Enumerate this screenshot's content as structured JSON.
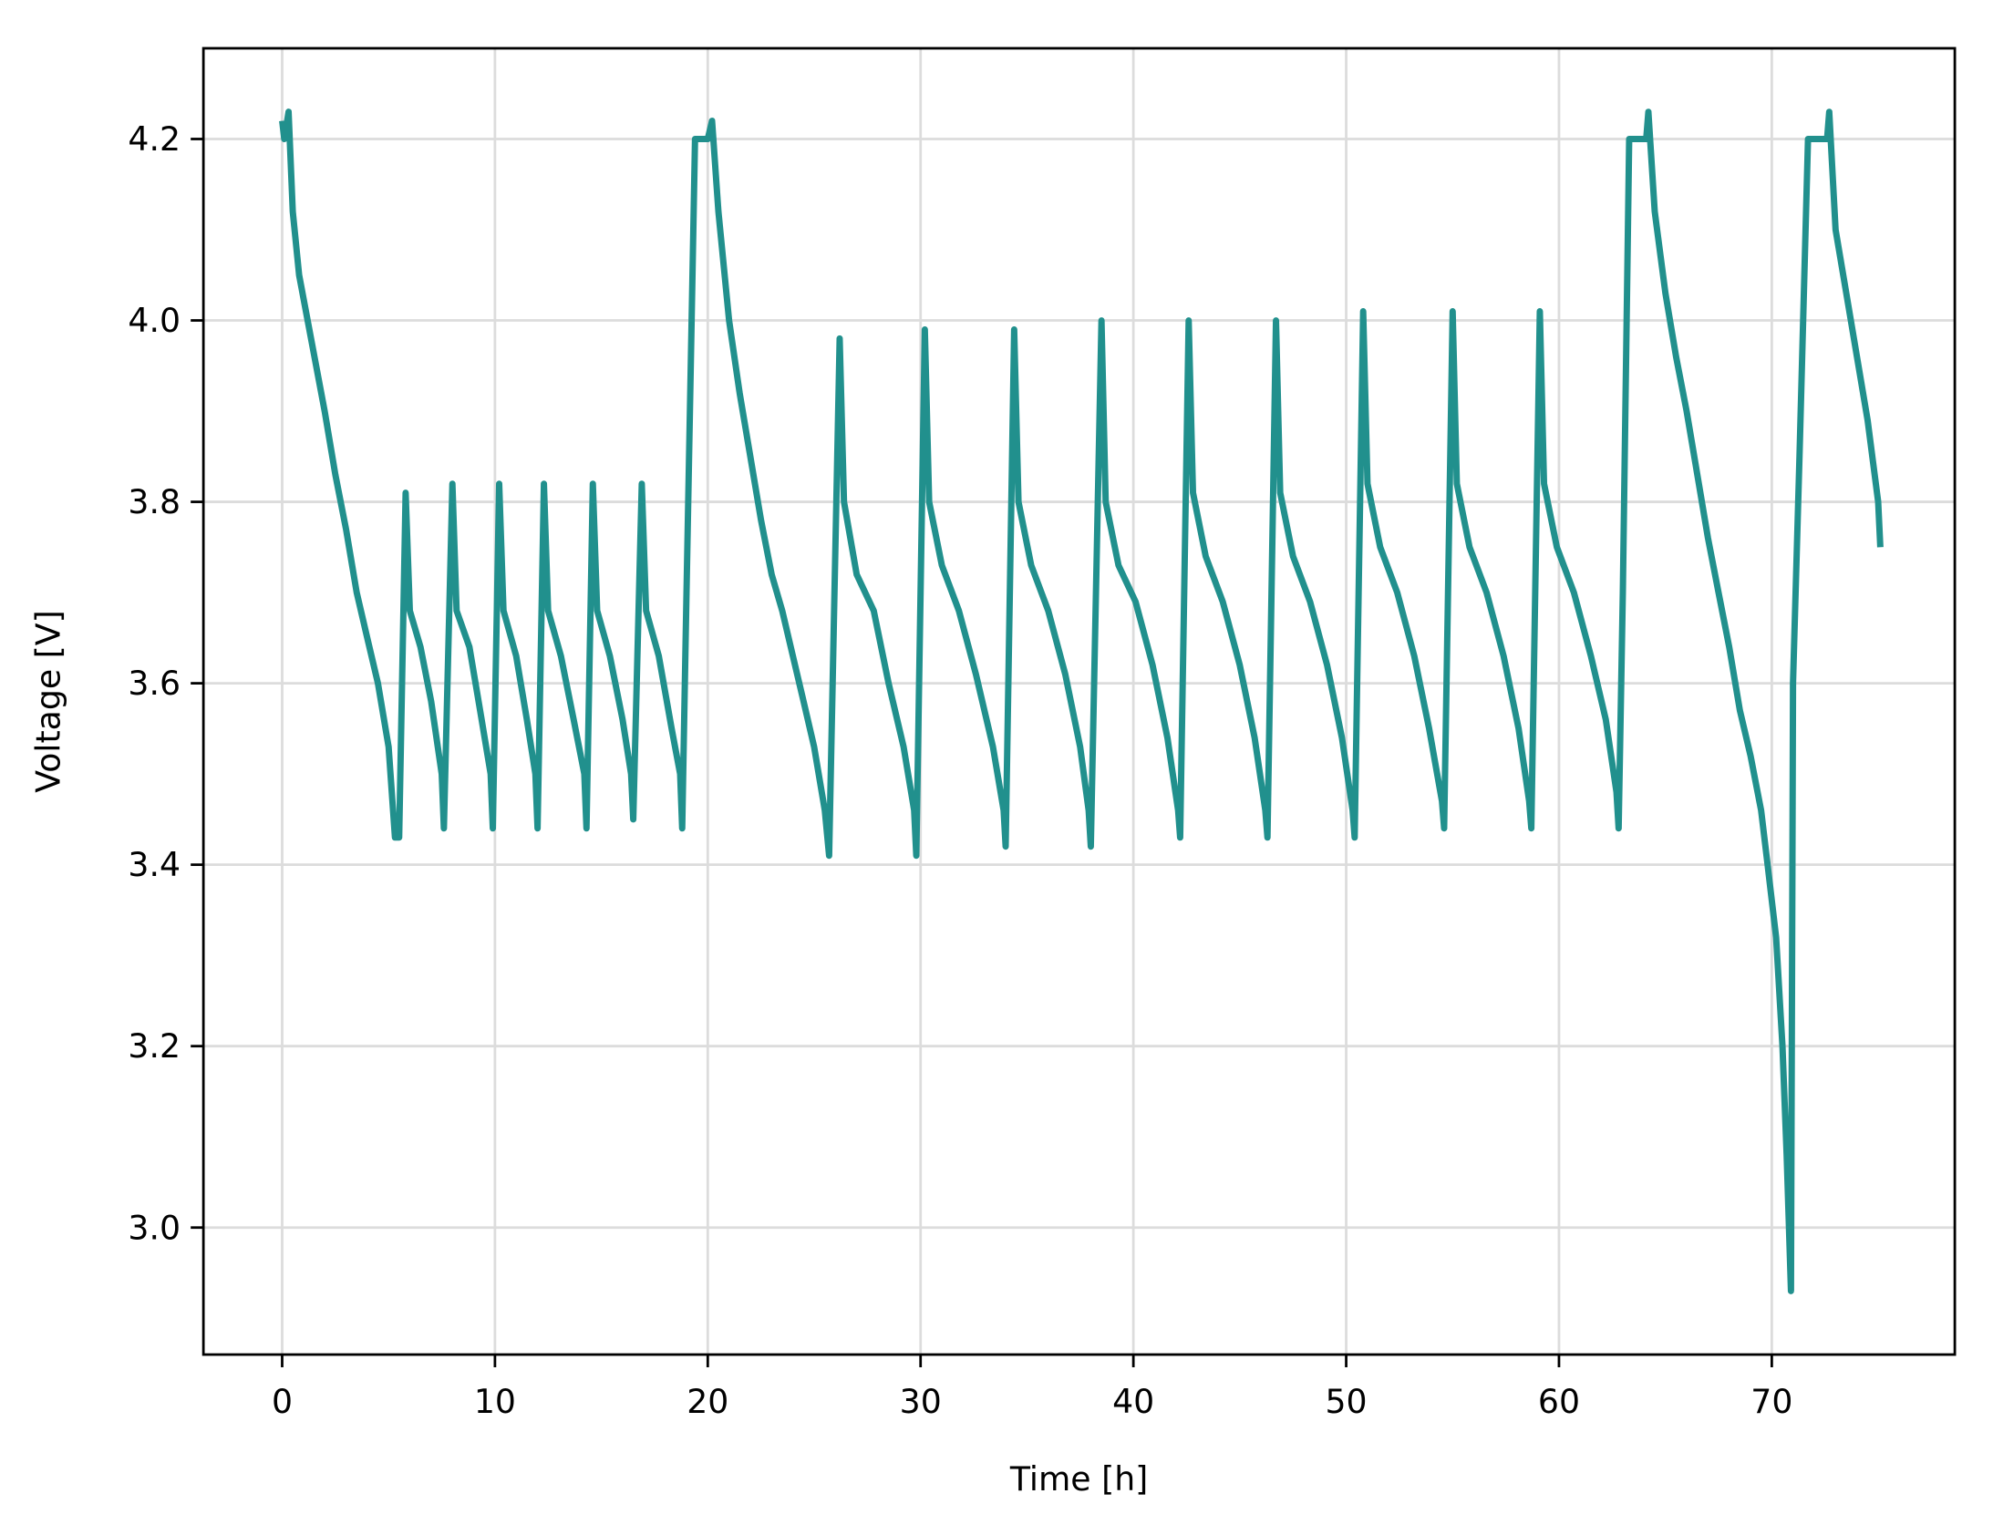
{
  "chart_data": {
    "type": "line",
    "title": "",
    "xlabel": "Time [h]",
    "ylabel": "Voltage [V]",
    "xlim": [
      -3.7,
      78.6
    ],
    "ylim": [
      2.86,
      4.3
    ],
    "xticks": [
      0,
      10,
      20,
      30,
      40,
      50,
      60,
      70
    ],
    "yticks": [
      3.0,
      3.2,
      3.4,
      3.6,
      3.8,
      4.0,
      4.2
    ],
    "ytick_labels": [
      "3.0",
      "3.2",
      "3.4",
      "3.6",
      "3.8",
      "4.0",
      "4.2"
    ],
    "grid": true,
    "line_color": "#21908d",
    "series": [
      {
        "points": [
          [
            0,
            4.22
          ],
          [
            0.1,
            4.2
          ],
          [
            0.3,
            4.23
          ],
          [
            0.5,
            4.12
          ],
          [
            0.8,
            4.05
          ],
          [
            1.2,
            4.0
          ],
          [
            1.6,
            3.95
          ],
          [
            2,
            3.9
          ],
          [
            2.5,
            3.83
          ],
          [
            3,
            3.77
          ],
          [
            3.5,
            3.7
          ],
          [
            4,
            3.65
          ],
          [
            4.5,
            3.6
          ],
          [
            5,
            3.53
          ],
          [
            5.3,
            3.43
          ],
          [
            5.5,
            3.43
          ],
          [
            5.8,
            3.81
          ],
          [
            6,
            3.68
          ],
          [
            6.5,
            3.64
          ],
          [
            7,
            3.58
          ],
          [
            7.5,
            3.5
          ],
          [
            7.6,
            3.44
          ],
          [
            8.0,
            3.82
          ],
          [
            8.2,
            3.68
          ],
          [
            8.8,
            3.64
          ],
          [
            9.3,
            3.57
          ],
          [
            9.8,
            3.5
          ],
          [
            9.9,
            3.44
          ],
          [
            10.2,
            3.82
          ],
          [
            10.4,
            3.68
          ],
          [
            11,
            3.63
          ],
          [
            11.5,
            3.56
          ],
          [
            11.9,
            3.5
          ],
          [
            12.0,
            3.44
          ],
          [
            12.3,
            3.82
          ],
          [
            12.5,
            3.68
          ],
          [
            13.1,
            3.63
          ],
          [
            13.7,
            3.56
          ],
          [
            14.2,
            3.5
          ],
          [
            14.3,
            3.44
          ],
          [
            14.6,
            3.82
          ],
          [
            14.8,
            3.68
          ],
          [
            15.4,
            3.63
          ],
          [
            16,
            3.56
          ],
          [
            16.4,
            3.5
          ],
          [
            16.5,
            3.45
          ],
          [
            16.9,
            3.82
          ],
          [
            17.1,
            3.68
          ],
          [
            17.7,
            3.63
          ],
          [
            18.3,
            3.55
          ],
          [
            18.7,
            3.5
          ],
          [
            18.8,
            3.44
          ],
          [
            19.0,
            3.7
          ],
          [
            19.4,
            4.2
          ],
          [
            20.0,
            4.2
          ],
          [
            20.2,
            4.22
          ],
          [
            20.5,
            4.12
          ],
          [
            21,
            4.0
          ],
          [
            21.5,
            3.92
          ],
          [
            22,
            3.85
          ],
          [
            22.5,
            3.78
          ],
          [
            23,
            3.72
          ],
          [
            23.5,
            3.68
          ],
          [
            24,
            3.63
          ],
          [
            24.5,
            3.58
          ],
          [
            25,
            3.53
          ],
          [
            25.5,
            3.46
          ],
          [
            25.7,
            3.41
          ],
          [
            26.2,
            3.98
          ],
          [
            26.4,
            3.8
          ],
          [
            27,
            3.72
          ],
          [
            27.8,
            3.68
          ],
          [
            28.5,
            3.6
          ],
          [
            29.2,
            3.53
          ],
          [
            29.7,
            3.46
          ],
          [
            29.8,
            3.41
          ],
          [
            30.2,
            3.99
          ],
          [
            30.4,
            3.8
          ],
          [
            31,
            3.73
          ],
          [
            31.8,
            3.68
          ],
          [
            32.6,
            3.61
          ],
          [
            33.4,
            3.53
          ],
          [
            33.9,
            3.46
          ],
          [
            34.0,
            3.42
          ],
          [
            34.4,
            3.99
          ],
          [
            34.6,
            3.8
          ],
          [
            35.2,
            3.73
          ],
          [
            36,
            3.68
          ],
          [
            36.8,
            3.61
          ],
          [
            37.5,
            3.53
          ],
          [
            37.9,
            3.46
          ],
          [
            38.0,
            3.42
          ],
          [
            38.5,
            4.0
          ],
          [
            38.7,
            3.8
          ],
          [
            39.3,
            3.73
          ],
          [
            40.1,
            3.69
          ],
          [
            40.9,
            3.62
          ],
          [
            41.6,
            3.54
          ],
          [
            42.1,
            3.46
          ],
          [
            42.2,
            3.43
          ],
          [
            42.6,
            4.0
          ],
          [
            42.8,
            3.81
          ],
          [
            43.4,
            3.74
          ],
          [
            44.2,
            3.69
          ],
          [
            45,
            3.62
          ],
          [
            45.7,
            3.54
          ],
          [
            46.2,
            3.46
          ],
          [
            46.3,
            3.43
          ],
          [
            46.7,
            4.0
          ],
          [
            46.9,
            3.81
          ],
          [
            47.5,
            3.74
          ],
          [
            48.3,
            3.69
          ],
          [
            49.1,
            3.62
          ],
          [
            49.8,
            3.54
          ],
          [
            50.3,
            3.46
          ],
          [
            50.4,
            3.43
          ],
          [
            50.8,
            4.01
          ],
          [
            51.0,
            3.82
          ],
          [
            51.6,
            3.75
          ],
          [
            52.4,
            3.7
          ],
          [
            53.2,
            3.63
          ],
          [
            53.9,
            3.55
          ],
          [
            54.5,
            3.47
          ],
          [
            54.6,
            3.44
          ],
          [
            55.0,
            4.01
          ],
          [
            55.2,
            3.82
          ],
          [
            55.8,
            3.75
          ],
          [
            56.6,
            3.7
          ],
          [
            57.4,
            3.63
          ],
          [
            58.1,
            3.55
          ],
          [
            58.6,
            3.47
          ],
          [
            58.7,
            3.44
          ],
          [
            59.1,
            4.01
          ],
          [
            59.3,
            3.82
          ],
          [
            59.9,
            3.75
          ],
          [
            60.7,
            3.7
          ],
          [
            61.5,
            3.63
          ],
          [
            62.2,
            3.56
          ],
          [
            62.7,
            3.48
          ],
          [
            62.8,
            3.44
          ],
          [
            63.0,
            3.7
          ],
          [
            63.3,
            4.2
          ],
          [
            64.1,
            4.2
          ],
          [
            64.2,
            4.23
          ],
          [
            64.5,
            4.12
          ],
          [
            65,
            4.03
          ],
          [
            65.5,
            3.96
          ],
          [
            66,
            3.9
          ],
          [
            66.5,
            3.83
          ],
          [
            67,
            3.76
          ],
          [
            67.5,
            3.7
          ],
          [
            68,
            3.64
          ],
          [
            68.5,
            3.57
          ],
          [
            69,
            3.52
          ],
          [
            69.5,
            3.46
          ],
          [
            69.8,
            3.4
          ],
          [
            70.2,
            3.32
          ],
          [
            70.5,
            3.2
          ],
          [
            70.7,
            3.08
          ],
          [
            70.9,
            2.93
          ],
          [
            71.0,
            3.6
          ],
          [
            71.3,
            3.85
          ],
          [
            71.7,
            4.2
          ],
          [
            72.6,
            4.2
          ],
          [
            72.7,
            4.23
          ],
          [
            73,
            4.1
          ],
          [
            73.5,
            4.03
          ],
          [
            74,
            3.96
          ],
          [
            74.5,
            3.89
          ],
          [
            75,
            3.8
          ],
          [
            75.1,
            3.75
          ]
        ]
      }
    ]
  }
}
